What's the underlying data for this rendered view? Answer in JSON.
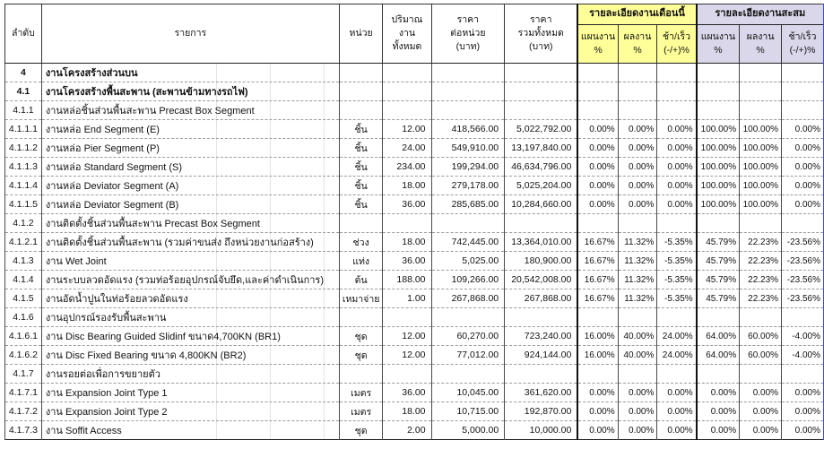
{
  "table": {
    "colors": {
      "month_header_bg": "#ffff99",
      "cumulative_header_bg": "#dad7ea",
      "page_break_line": "#3f48d6"
    },
    "header": {
      "col_no": "ลำดับ",
      "col_item": "รายการ",
      "col_unit": "หน่วย",
      "col_qty": "ปริมาณ\nงาน\nทั้งหมด",
      "col_unit_price": "ราคา\nต่อหน่วย\n(บาท)",
      "col_total_price": "ราคา\nรวมทั้งหมด\n(บาท)",
      "group_month": "รายละเอียดงานเดือนนี้",
      "group_cumulative": "รายละเอียดงานสะสม",
      "sub_plan": "แผนงาน\n%",
      "sub_actual": "ผลงาน\n%",
      "sub_diff": "ช้า/เร็ว\n(-/+)%"
    },
    "rows": [
      {
        "no": "4",
        "desc": "งานโครงสร้างส่วนบน",
        "unit": "",
        "qty": "",
        "unit_price": "",
        "total_price": "",
        "m_plan": "",
        "m_actual": "",
        "m_diff": "",
        "c_plan": "",
        "c_actual": "",
        "c_diff": "",
        "bold": true
      },
      {
        "no": "4.1",
        "desc": "งานโครงสร้างพื้นสะพาน (สะพานข้ามทางรถไฟ)",
        "unit": "",
        "qty": "",
        "unit_price": "",
        "total_price": "",
        "m_plan": "",
        "m_actual": "",
        "m_diff": "",
        "c_plan": "",
        "c_actual": "",
        "c_diff": "",
        "bold": true
      },
      {
        "no": "4.1.1",
        "desc": "งานหล่อชิ้นส่วนพื้นสะพาน Precast Box Segment",
        "unit": "",
        "qty": "",
        "unit_price": "",
        "total_price": "",
        "m_plan": "",
        "m_actual": "",
        "m_diff": "",
        "c_plan": "",
        "c_actual": "",
        "c_diff": "",
        "bold": false
      },
      {
        "no": "4.1.1.1",
        "desc": "งานหล่อ End Segment (E)",
        "unit": "ชิ้น",
        "qty": "12.00",
        "unit_price": "418,566.00",
        "total_price": "5,022,792.00",
        "m_plan": "0.00%",
        "m_actual": "0.00%",
        "m_diff": "0.00%",
        "c_plan": "100.00%",
        "c_actual": "100.00%",
        "c_diff": "0.00%",
        "bold": false
      },
      {
        "no": "4.1.1.2",
        "desc": "งานหล่อ Pier Segment (P)",
        "unit": "ชิ้น",
        "qty": "24.00",
        "unit_price": "549,910.00",
        "total_price": "13,197,840.00",
        "m_plan": "0.00%",
        "m_actual": "0.00%",
        "m_diff": "0.00%",
        "c_plan": "100.00%",
        "c_actual": "100.00%",
        "c_diff": "0.00%",
        "bold": false
      },
      {
        "no": "4.1.1.3",
        "desc": "งานหล่อ Standard Segment (S)",
        "unit": "ชิ้น",
        "qty": "234.00",
        "unit_price": "199,294.00",
        "total_price": "46,634,796.00",
        "m_plan": "0.00%",
        "m_actual": "0.00%",
        "m_diff": "0.00%",
        "c_plan": "100.00%",
        "c_actual": "100.00%",
        "c_diff": "0.00%",
        "bold": false
      },
      {
        "no": "4.1.1.4",
        "desc": "งานหล่อ Deviator Segment (A)",
        "unit": "ชิ้น",
        "qty": "18.00",
        "unit_price": "279,178.00",
        "total_price": "5,025,204.00",
        "m_plan": "0.00%",
        "m_actual": "0.00%",
        "m_diff": "0.00%",
        "c_plan": "100.00%",
        "c_actual": "100.00%",
        "c_diff": "0.00%",
        "bold": false
      },
      {
        "no": "4.1.1.5",
        "desc": "งานหล่อ Deviator Segment (B)",
        "unit": "ชิ้น",
        "qty": "36.00",
        "unit_price": "285,685.00",
        "total_price": "10,284,660.00",
        "m_plan": "0.00%",
        "m_actual": "0.00%",
        "m_diff": "0.00%",
        "c_plan": "100.00%",
        "c_actual": "100.00%",
        "c_diff": "0.00%",
        "bold": false
      },
      {
        "no": "4.1.2",
        "desc": "งานติดตั้งชิ้นส่วนพื้นสะพาน Precast Box Segment",
        "unit": "",
        "qty": "",
        "unit_price": "",
        "total_price": "",
        "m_plan": "",
        "m_actual": "",
        "m_diff": "",
        "c_plan": "",
        "c_actual": "",
        "c_diff": "",
        "bold": false
      },
      {
        "no": "4.1.2.1",
        "desc": "งานติดตั้งชิ้นส่วนพื้นสะพาน (รวมค่าขนส่ง ถึงหน่วยงานก่อสร้าง)",
        "unit": "ช่วง",
        "qty": "18.00",
        "unit_price": "742,445.00",
        "total_price": "13,364,010.00",
        "m_plan": "16.67%",
        "m_actual": "11.32%",
        "m_diff": "-5.35%",
        "c_plan": "45.79%",
        "c_actual": "22.23%",
        "c_diff": "-23.56%",
        "bold": false
      },
      {
        "no": "4.1.3",
        "desc": "งาน Wet Joint",
        "unit": "แท่ง",
        "qty": "36.00",
        "unit_price": "5,025.00",
        "total_price": "180,900.00",
        "m_plan": "16.67%",
        "m_actual": "11.32%",
        "m_diff": "-5.35%",
        "c_plan": "45.79%",
        "c_actual": "22.23%",
        "c_diff": "-23.56%",
        "bold": false
      },
      {
        "no": "4.1.4",
        "desc": "งานระบบลวดอัดแรง (รวมท่อร้อยอุปกรณ์จับยึด,และค่าดำเนินการ)",
        "unit": "ต้น",
        "qty": "188.00",
        "unit_price": "109,266.00",
        "total_price": "20,542,008.00",
        "m_plan": "16.67%",
        "m_actual": "11.32%",
        "m_diff": "-5.35%",
        "c_plan": "45.79%",
        "c_actual": "22.23%",
        "c_diff": "-23.56%",
        "bold": false
      },
      {
        "no": "4.1.5",
        "desc": "งานอัดน้ำปูนในท่อร้อยลวดอัดแรง",
        "unit": "เหมาจ่าย",
        "qty": "1.00",
        "unit_price": "267,868.00",
        "total_price": "267,868.00",
        "m_plan": "16.67%",
        "m_actual": "11.32%",
        "m_diff": "-5.35%",
        "c_plan": "45.79%",
        "c_actual": "22.23%",
        "c_diff": "-23.56%",
        "bold": false
      },
      {
        "no": "4.1.6",
        "desc": "งานอุปกรณ์รองรับพื้นสะพาน",
        "unit": "",
        "qty": "",
        "unit_price": "",
        "total_price": "",
        "m_plan": "",
        "m_actual": "",
        "m_diff": "",
        "c_plan": "",
        "c_actual": "",
        "c_diff": "",
        "bold": false
      },
      {
        "no": "4.1.6.1",
        "desc": "งาน Disc Bearing Guided Slidinf ขนาด4,700KN (BR1)",
        "unit": "ชุด",
        "qty": "12.00",
        "unit_price": "60,270.00",
        "total_price": "723,240.00",
        "m_plan": "16.00%",
        "m_actual": "40.00%",
        "m_diff": "24.00%",
        "c_plan": "64.00%",
        "c_actual": "60.00%",
        "c_diff": "-4.00%",
        "bold": false
      },
      {
        "no": "4.1.6.2",
        "desc": "งาน Disc Fixed Bearing ขนาด 4,800KN (BR2)",
        "unit": "ชุด",
        "qty": "12.00",
        "unit_price": "77,012.00",
        "total_price": "924,144.00",
        "m_plan": "16.00%",
        "m_actual": "40.00%",
        "m_diff": "24.00%",
        "c_plan": "64.00%",
        "c_actual": "60.00%",
        "c_diff": "-4.00%",
        "bold": false
      },
      {
        "no": "4.1.7",
        "desc": "งานรอยต่อเพื่อการขยายตัว",
        "unit": "",
        "qty": "",
        "unit_price": "",
        "total_price": "",
        "m_plan": "",
        "m_actual": "",
        "m_diff": "",
        "c_plan": "",
        "c_actual": "",
        "c_diff": "",
        "bold": false
      },
      {
        "no": "4.1.7.1",
        "desc": "งาน Expansion Joint Type 1",
        "unit": "เมตร",
        "qty": "36.00",
        "unit_price": "10,045.00",
        "total_price": "361,620.00",
        "m_plan": "0.00%",
        "m_actual": "0.00%",
        "m_diff": "0.00%",
        "c_plan": "0.00%",
        "c_actual": "0.00%",
        "c_diff": "0.00%",
        "bold": false
      },
      {
        "no": "4.1.7.2",
        "desc": "งาน Expansion Joint Type 2",
        "unit": "เมตร",
        "qty": "18.00",
        "unit_price": "10,715.00",
        "total_price": "192,870.00",
        "m_plan": "0.00%",
        "m_actual": "0.00%",
        "m_diff": "0.00%",
        "c_plan": "0.00%",
        "c_actual": "0.00%",
        "c_diff": "0.00%",
        "bold": false
      },
      {
        "no": "4.1.7.3",
        "desc": "งาน Soffit Access",
        "unit": "ชุด",
        "qty": "2.00",
        "unit_price": "5,000.00",
        "total_price": "10,000.00",
        "m_plan": "0.00%",
        "m_actual": "0.00%",
        "m_diff": "0.00%",
        "c_plan": "0.00%",
        "c_actual": "0.00%",
        "c_diff": "0.00%",
        "bold": false
      }
    ]
  }
}
